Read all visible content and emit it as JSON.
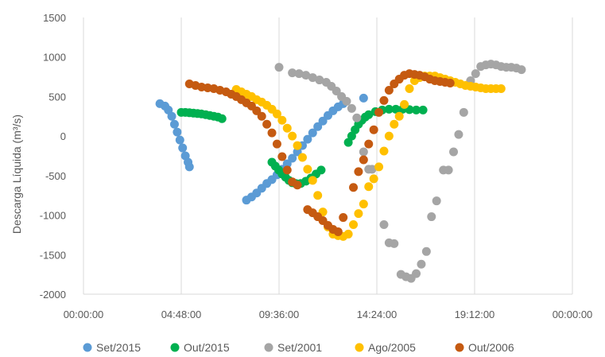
{
  "chart_data": {
    "type": "scatter",
    "title": "",
    "xlabel": "",
    "ylabel": "Descarga Líquida (m³/s)",
    "xlim": [
      "00:00:00",
      "24:00:00"
    ],
    "ylim": [
      -2000,
      1500
    ],
    "x_ticks": [
      "00:00:00",
      "04:48:00",
      "09:36:00",
      "14:24:00",
      "19:12:00",
      "00:00:00"
    ],
    "y_ticks": [
      1500,
      1000,
      500,
      0,
      -500,
      -1000,
      -1500,
      -2000
    ],
    "grid": "vertical",
    "legend": "bottom",
    "series": [
      {
        "name": "Set/2015",
        "color": "#5B9BD5",
        "points": [
          [
            "03:45",
            410
          ],
          [
            "04:00",
            380
          ],
          [
            "04:10",
            330
          ],
          [
            "04:20",
            250
          ],
          [
            "04:28",
            150
          ],
          [
            "04:36",
            50
          ],
          [
            "04:44",
            -50
          ],
          [
            "04:52",
            -150
          ],
          [
            "05:00",
            -250
          ],
          [
            "05:08",
            -330
          ],
          [
            "05:12",
            -390
          ],
          [
            "08:00",
            -810
          ],
          [
            "08:15",
            -770
          ],
          [
            "08:30",
            -720
          ],
          [
            "08:45",
            -660
          ],
          [
            "09:00",
            -600
          ],
          [
            "09:15",
            -550
          ],
          [
            "09:30",
            -490
          ],
          [
            "09:45",
            -420
          ],
          [
            "10:00",
            -350
          ],
          [
            "10:15",
            -280
          ],
          [
            "10:30",
            -200
          ],
          [
            "10:45",
            -120
          ],
          [
            "11:00",
            -40
          ],
          [
            "11:15",
            40
          ],
          [
            "11:30",
            120
          ],
          [
            "11:45",
            190
          ],
          [
            "12:00",
            260
          ],
          [
            "12:15",
            320
          ],
          [
            "12:30",
            370
          ],
          [
            "12:45",
            410
          ],
          [
            "13:45",
            480
          ]
        ]
      },
      {
        "name": "Out/2015",
        "color": "#00B050",
        "points": [
          [
            "04:48",
            300
          ],
          [
            "05:00",
            300
          ],
          [
            "05:12",
            295
          ],
          [
            "05:24",
            290
          ],
          [
            "05:36",
            285
          ],
          [
            "05:48",
            280
          ],
          [
            "06:00",
            270
          ],
          [
            "06:12",
            260
          ],
          [
            "06:24",
            250
          ],
          [
            "06:36",
            240
          ],
          [
            "06:48",
            220
          ],
          [
            "09:15",
            -330
          ],
          [
            "09:25",
            -380
          ],
          [
            "09:35",
            -430
          ],
          [
            "09:45",
            -480
          ],
          [
            "09:55",
            -520
          ],
          [
            "10:05",
            -560
          ],
          [
            "10:15",
            -590
          ],
          [
            "10:25",
            -600
          ],
          [
            "10:40",
            -600
          ],
          [
            "10:55",
            -570
          ],
          [
            "11:10",
            -530
          ],
          [
            "11:25",
            -480
          ],
          [
            "11:40",
            -430
          ],
          [
            "13:00",
            -80
          ],
          [
            "13:10",
            0
          ],
          [
            "13:20",
            80
          ],
          [
            "13:30",
            150
          ],
          [
            "13:40",
            200
          ],
          [
            "13:50",
            240
          ],
          [
            "14:00",
            270
          ],
          [
            "14:20",
            310
          ],
          [
            "14:40",
            330
          ],
          [
            "15:00",
            340
          ],
          [
            "15:20",
            340
          ],
          [
            "15:40",
            340
          ],
          [
            "16:00",
            335
          ],
          [
            "16:20",
            330
          ],
          [
            "16:40",
            330
          ]
        ]
      },
      {
        "name": "Set/2001",
        "color": "#A5A5A5",
        "points": [
          [
            "09:36",
            870
          ],
          [
            "10:15",
            800
          ],
          [
            "10:35",
            790
          ],
          [
            "10:55",
            770
          ],
          [
            "11:15",
            740
          ],
          [
            "11:35",
            710
          ],
          [
            "11:55",
            680
          ],
          [
            "12:10",
            630
          ],
          [
            "12:25",
            570
          ],
          [
            "12:40",
            500
          ],
          [
            "12:55",
            440
          ],
          [
            "13:10",
            350
          ],
          [
            "13:25",
            230
          ],
          [
            "13:45",
            -200
          ],
          [
            "14:00",
            -420
          ],
          [
            "14:10",
            -420
          ],
          [
            "14:45",
            -1120
          ],
          [
            "15:00",
            -1350
          ],
          [
            "15:15",
            -1360
          ],
          [
            "15:35",
            -1750
          ],
          [
            "15:50",
            -1780
          ],
          [
            "16:05",
            -1800
          ],
          [
            "16:20",
            -1740
          ],
          [
            "16:35",
            -1620
          ],
          [
            "16:50",
            -1460
          ],
          [
            "17:05",
            -1020
          ],
          [
            "17:20",
            -820
          ],
          [
            "17:40",
            -430
          ],
          [
            "17:55",
            -430
          ],
          [
            "18:10",
            -200
          ],
          [
            "18:25",
            20
          ],
          [
            "18:40",
            300
          ],
          [
            "19:00",
            700
          ],
          [
            "19:15",
            790
          ],
          [
            "19:30",
            880
          ],
          [
            "19:45",
            900
          ],
          [
            "20:00",
            910
          ],
          [
            "20:15",
            900
          ],
          [
            "20:30",
            880
          ],
          [
            "20:45",
            870
          ],
          [
            "21:00",
            870
          ],
          [
            "21:15",
            860
          ],
          [
            "21:30",
            840
          ]
        ]
      },
      {
        "name": "Ago/2005",
        "color": "#FFC000",
        "points": [
          [
            "07:30",
            590
          ],
          [
            "07:45",
            560
          ],
          [
            "08:00",
            530
          ],
          [
            "08:15",
            500
          ],
          [
            "08:30",
            460
          ],
          [
            "08:45",
            430
          ],
          [
            "09:00",
            390
          ],
          [
            "09:15",
            340
          ],
          [
            "09:30",
            280
          ],
          [
            "09:45",
            200
          ],
          [
            "10:00",
            100
          ],
          [
            "10:15",
            0
          ],
          [
            "10:30",
            -120
          ],
          [
            "10:45",
            -270
          ],
          [
            "11:00",
            -420
          ],
          [
            "11:15",
            -560
          ],
          [
            "11:30",
            -750
          ],
          [
            "11:45",
            -960
          ],
          [
            "12:00",
            -1150
          ],
          [
            "12:15",
            -1240
          ],
          [
            "12:30",
            -1260
          ],
          [
            "12:45",
            -1270
          ],
          [
            "13:00",
            -1240
          ],
          [
            "13:15",
            -1120
          ],
          [
            "13:30",
            -980
          ],
          [
            "13:45",
            -860
          ],
          [
            "14:00",
            -640
          ],
          [
            "14:15",
            -540
          ],
          [
            "14:30",
            -390
          ],
          [
            "14:45",
            -190
          ],
          [
            "15:00",
            0
          ],
          [
            "15:15",
            150
          ],
          [
            "15:30",
            250
          ],
          [
            "15:45",
            400
          ],
          [
            "16:00",
            600
          ],
          [
            "16:15",
            700
          ],
          [
            "16:30",
            740
          ],
          [
            "16:45",
            760
          ],
          [
            "17:00",
            760
          ],
          [
            "17:15",
            760
          ],
          [
            "17:30",
            740
          ],
          [
            "17:45",
            720
          ],
          [
            "18:00",
            700
          ],
          [
            "18:15",
            680
          ],
          [
            "18:30",
            660
          ],
          [
            "18:45",
            640
          ],
          [
            "19:00",
            630
          ],
          [
            "19:15",
            620
          ],
          [
            "19:30",
            610
          ],
          [
            "19:45",
            600
          ],
          [
            "20:00",
            600
          ],
          [
            "20:15",
            600
          ],
          [
            "20:30",
            600
          ]
        ]
      },
      {
        "name": "Out/2006",
        "color": "#C55A11",
        "points": [
          [
            "05:12",
            660
          ],
          [
            "05:30",
            640
          ],
          [
            "05:48",
            620
          ],
          [
            "06:06",
            610
          ],
          [
            "06:24",
            600
          ],
          [
            "06:42",
            580
          ],
          [
            "07:00",
            560
          ],
          [
            "07:15",
            530
          ],
          [
            "07:30",
            500
          ],
          [
            "07:45",
            460
          ],
          [
            "08:00",
            420
          ],
          [
            "08:15",
            380
          ],
          [
            "08:30",
            320
          ],
          [
            "08:45",
            250
          ],
          [
            "09:00",
            150
          ],
          [
            "09:15",
            40
          ],
          [
            "09:30",
            -100
          ],
          [
            "09:45",
            -260
          ],
          [
            "10:00",
            -430
          ],
          [
            "10:15",
            -580
          ],
          [
            "10:30",
            -620
          ],
          [
            "11:00",
            -930
          ],
          [
            "11:15",
            -970
          ],
          [
            "11:30",
            -1020
          ],
          [
            "11:45",
            -1070
          ],
          [
            "12:00",
            -1130
          ],
          [
            "12:15",
            -1180
          ],
          [
            "12:30",
            -1210
          ],
          [
            "12:45",
            -1030
          ],
          [
            "13:15",
            -650
          ],
          [
            "13:30",
            -450
          ],
          [
            "13:45",
            -300
          ],
          [
            "14:00",
            -100
          ],
          [
            "14:15",
            80
          ],
          [
            "14:30",
            300
          ],
          [
            "14:45",
            450
          ],
          [
            "15:00",
            580
          ],
          [
            "15:15",
            660
          ],
          [
            "15:30",
            720
          ],
          [
            "15:45",
            770
          ],
          [
            "16:00",
            790
          ],
          [
            "16:15",
            780
          ],
          [
            "16:30",
            770
          ],
          [
            "16:45",
            750
          ],
          [
            "17:00",
            720
          ],
          [
            "17:15",
            700
          ],
          [
            "17:30",
            690
          ],
          [
            "17:45",
            680
          ],
          [
            "18:00",
            670
          ]
        ]
      }
    ]
  }
}
